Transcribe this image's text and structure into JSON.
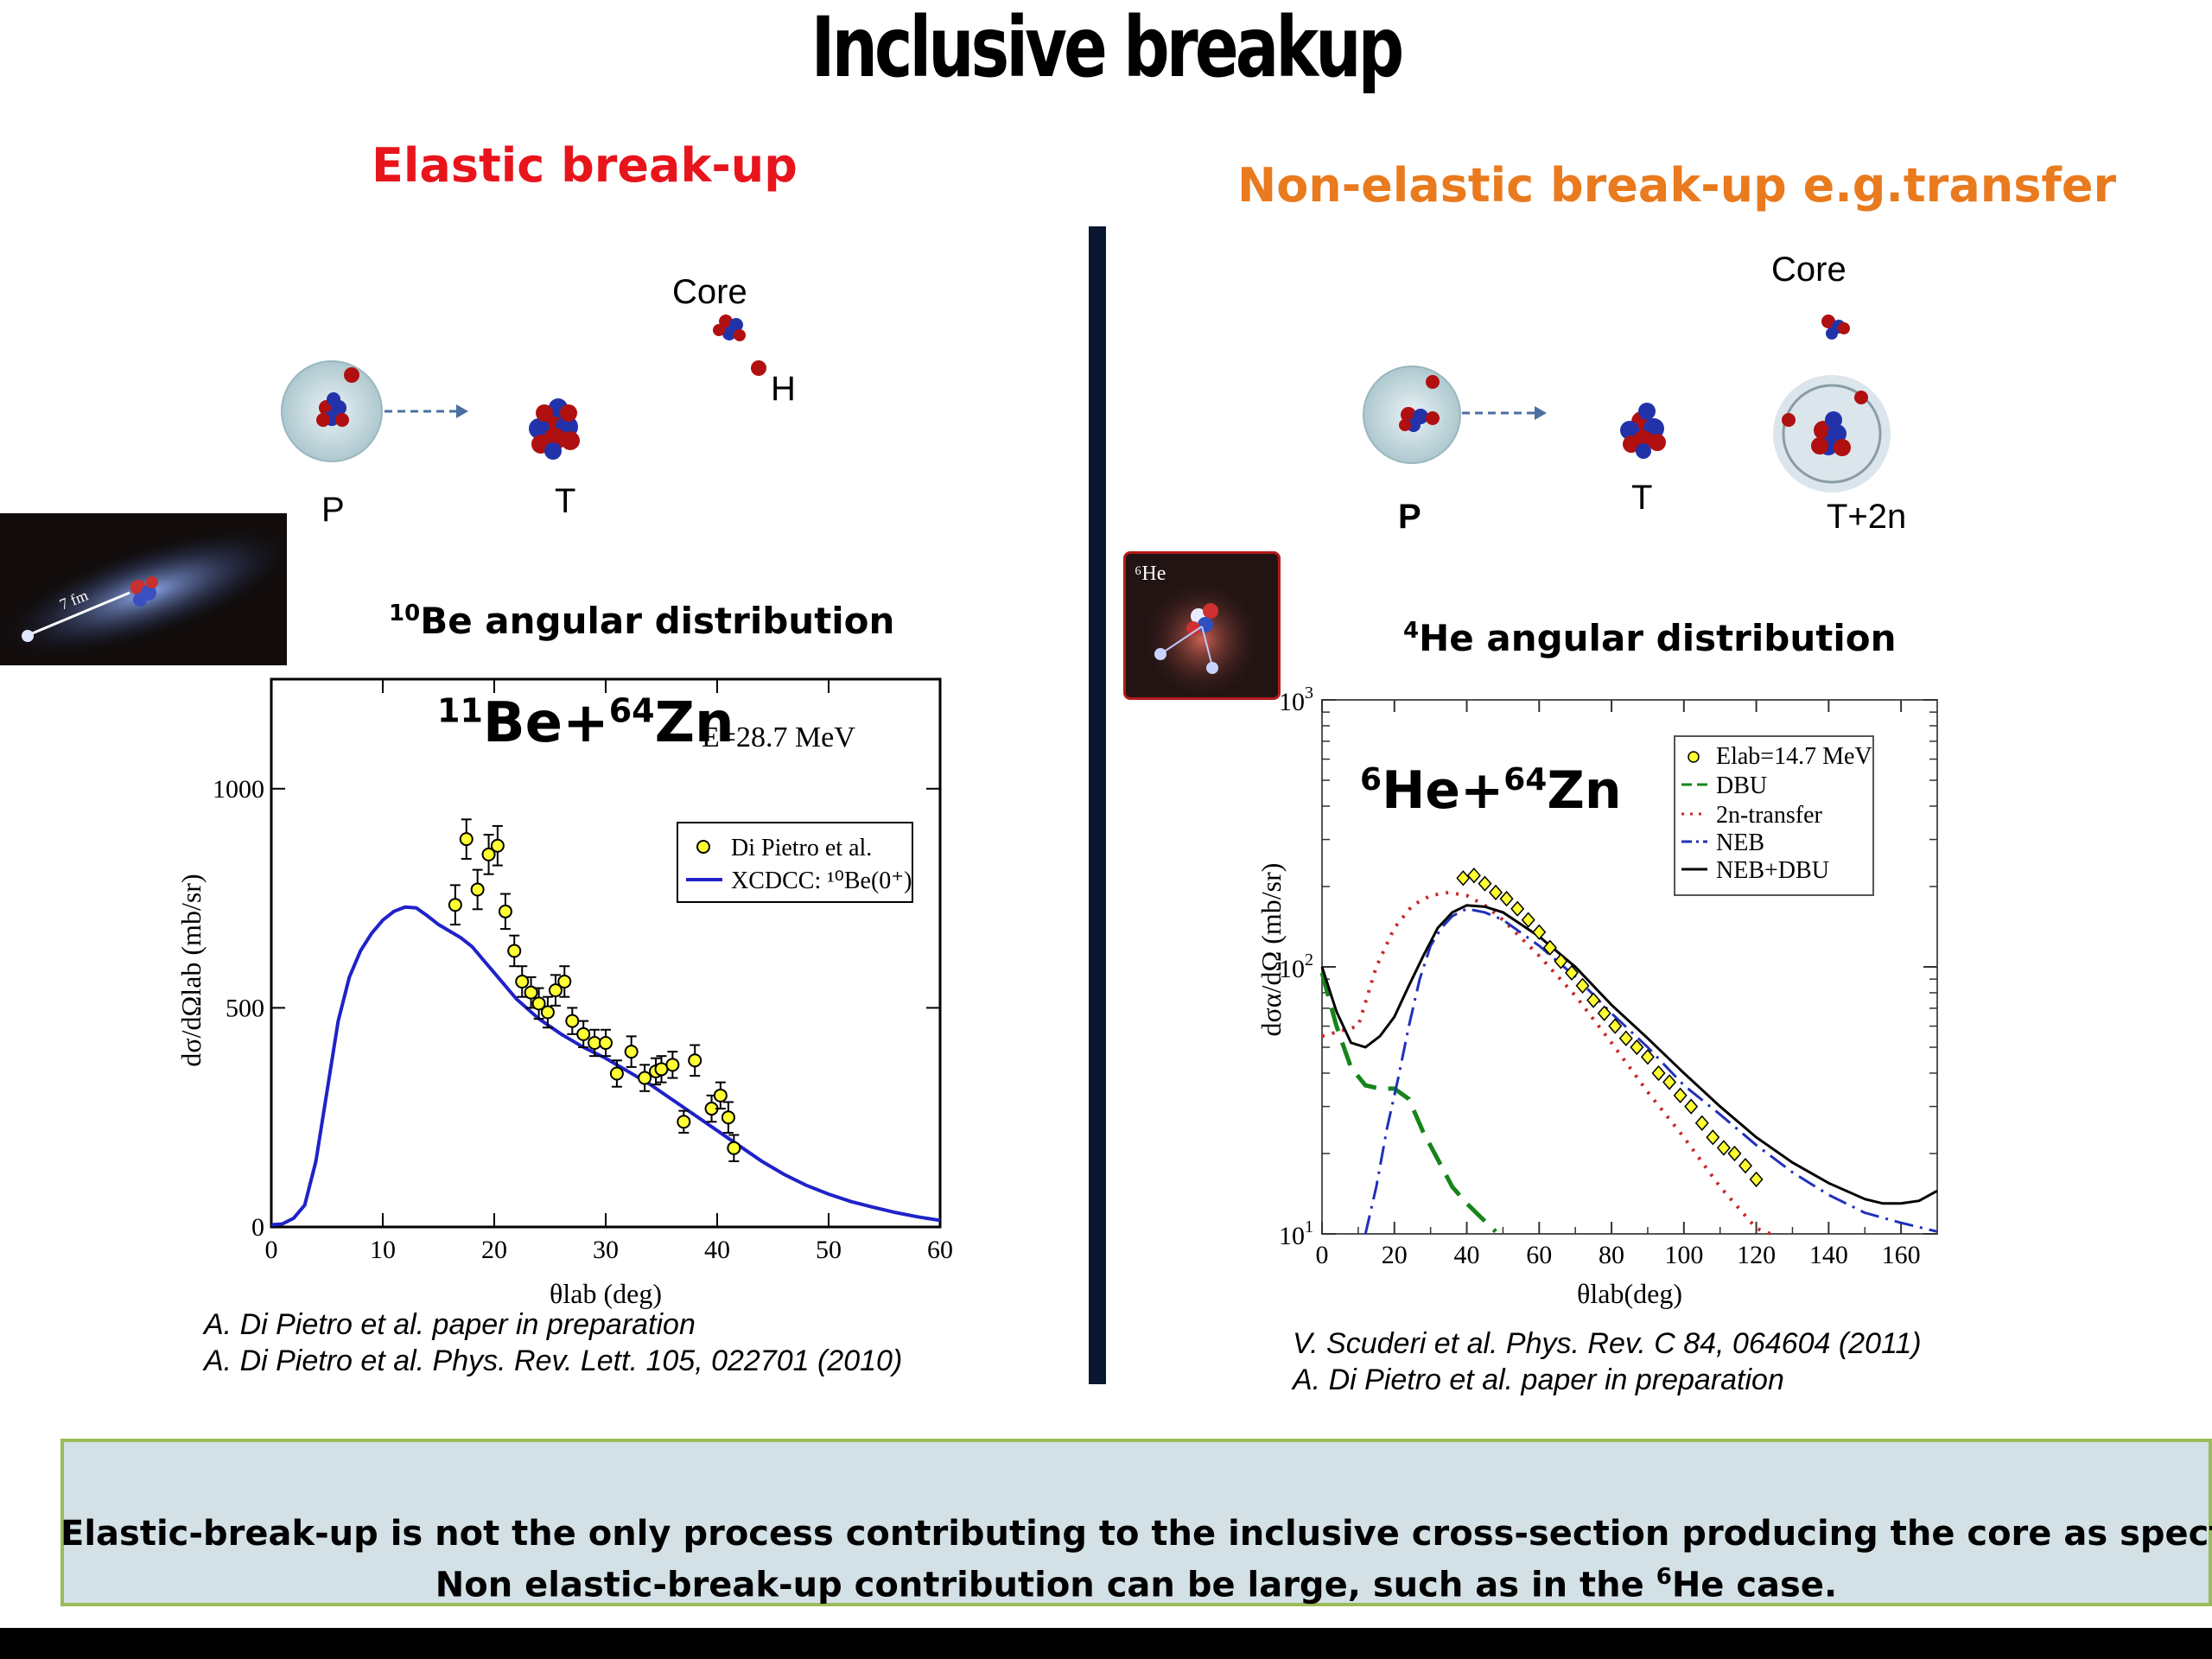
{
  "title": "Inclusive breakup",
  "left": {
    "heading": "Elastic break-up",
    "diagram": {
      "core_label": "Core",
      "fragment_label": "H",
      "projectile_label": "P",
      "target_label": "T"
    },
    "thumbnail_label": "7 fm",
    "dist_title_sup": "10",
    "dist_title_text": "Be angular distribution",
    "reaction": {
      "a_sup": "11",
      "a": "Be+",
      "b_sup": "64",
      "b": "Zn"
    },
    "citations": [
      "A. Di Pietro et al. paper in preparation",
      "A. Di Pietro et al. Phys. Rev. Lett. 105, 022701 (2010)"
    ]
  },
  "right": {
    "heading": "Non-elastic break-up e.g.transfer",
    "diagram": {
      "core_label": "Core",
      "projectile_label": "P",
      "target_label": "T",
      "product_label": "T+2n"
    },
    "thumbnail_label": "⁶He",
    "dist_title_sup": "4",
    "dist_title_text": "He angular distribution",
    "reaction": {
      "a_sup": "6",
      "a": "He+",
      "b_sup": "64",
      "b": "Zn"
    },
    "citations": [
      "V. Scuderi et al. Phys. Rev. C  84, 064604 (2011)",
      "A.   Di Pietro et al. paper in preparation"
    ]
  },
  "conclusion": {
    "line1": "Elastic-break-up is not the only process contributing to the inclusive cross-section producing the core as spectator.",
    "line2_pre": "Non elastic-break-up contribution can be large, such as in the ",
    "line2_sup": "6",
    "line2_post": "He case."
  },
  "chart_data": [
    {
      "type": "scatter",
      "energy_label": "E=28.7 MeV",
      "xlabel": "θlab (deg)",
      "ylabel": "dσ/dΩlab (mb/sr)",
      "xlim": [
        0,
        60
      ],
      "ylim": [
        0,
        1250
      ],
      "xticks": [
        0,
        10,
        20,
        30,
        40,
        50,
        60
      ],
      "yticks": [
        0,
        500,
        1000
      ],
      "legend_position": "top-right",
      "series": [
        {
          "name": "Di Pietro et al.",
          "kind": "points",
          "color": "#ffff33",
          "x": [
            16.5,
            17.5,
            18.5,
            19.5,
            20.3,
            21.0,
            21.8,
            22.5,
            23.3,
            24.0,
            24.8,
            25.5,
            26.3,
            27.0,
            28.0,
            29.0,
            30.0,
            31.0,
            32.3,
            33.5,
            34.5,
            35.0,
            36.0,
            37.0,
            38.0,
            39.5,
            40.3,
            41.0,
            41.5
          ],
          "y": [
            735,
            885,
            770,
            850,
            870,
            720,
            630,
            560,
            535,
            510,
            490,
            540,
            560,
            470,
            440,
            420,
            420,
            350,
            400,
            340,
            355,
            360,
            370,
            240,
            380,
            270,
            300,
            250,
            180
          ],
          "err": [
            45,
            45,
            45,
            45,
            45,
            40,
            35,
            35,
            35,
            35,
            35,
            35,
            35,
            30,
            30,
            30,
            30,
            30,
            35,
            30,
            30,
            30,
            30,
            25,
            35,
            30,
            30,
            35,
            30
          ]
        },
        {
          "name": "XCDCC: ¹⁰Be(0⁺)",
          "kind": "line",
          "color": "#1f22c8",
          "x": [
            0,
            1,
            2,
            3,
            4,
            5,
            6,
            7,
            8,
            9,
            10,
            11,
            12,
            13,
            14,
            15,
            16,
            17,
            18,
            19,
            20,
            22,
            24,
            26,
            28,
            30,
            32,
            34,
            36,
            38,
            40,
            42,
            44,
            46,
            48,
            50,
            52,
            54,
            56,
            58,
            60
          ],
          "y": [
            5,
            7,
            20,
            50,
            150,
            310,
            470,
            570,
            630,
            670,
            700,
            720,
            730,
            728,
            710,
            690,
            675,
            660,
            640,
            610,
            580,
            520,
            475,
            440,
            410,
            385,
            355,
            325,
            290,
            255,
            220,
            185,
            150,
            120,
            95,
            75,
            58,
            45,
            33,
            23,
            15
          ]
        }
      ]
    },
    {
      "type": "line",
      "xlabel": "θlab(deg)",
      "ylabel": "dσα/dΩ (mb/sr)",
      "xlim": [
        0,
        170
      ],
      "ylim": [
        10,
        1000
      ],
      "yscale": "log",
      "xticks": [
        0,
        20,
        40,
        60,
        80,
        100,
        120,
        140,
        160
      ],
      "yticks": [
        10,
        100,
        1000
      ],
      "legend_position": "top-right",
      "series": [
        {
          "name": "Elab=14.7 MeV",
          "kind": "points",
          "color": "#ffff33",
          "x": [
            39,
            42,
            45,
            48,
            51,
            54,
            57,
            60,
            63,
            66,
            69,
            72,
            75,
            78,
            81,
            84,
            87,
            90,
            93,
            96,
            99,
            102,
            105,
            108,
            111,
            114,
            117,
            120
          ],
          "y": [
            215,
            220,
            205,
            190,
            180,
            165,
            150,
            135,
            118,
            105,
            95,
            85,
            75,
            67,
            60,
            54,
            50,
            46,
            40,
            37,
            33,
            30,
            26,
            23,
            21,
            20,
            18,
            16
          ]
        },
        {
          "name": "DBU",
          "kind": "line",
          "dash": "28,14",
          "color": "#15851a",
          "x": [
            0,
            4,
            8,
            12,
            16,
            20,
            24,
            28,
            32,
            36,
            40,
            44,
            48
          ],
          "y": [
            95,
            60,
            42,
            36,
            35,
            35,
            32,
            24,
            19,
            15,
            13,
            11.5,
            10.2
          ]
        },
        {
          "name": "2n-transfer",
          "kind": "line",
          "dash": "3,9",
          "color": "#c8282a",
          "x": [
            0,
            10,
            15,
            20,
            25,
            30,
            35,
            40,
            45,
            50,
            60,
            70,
            80,
            90,
            100,
            110,
            120,
            124
          ],
          "y": [
            55,
            60,
            100,
            140,
            170,
            185,
            190,
            185,
            170,
            150,
            110,
            78,
            52,
            34,
            23,
            15,
            10.5,
            10
          ]
        },
        {
          "name": "NEB",
          "kind": "line",
          "dash": "22,8,3,8",
          "color": "#2030b8",
          "x": [
            12,
            15,
            18,
            21,
            24,
            27,
            30,
            33,
            36,
            40,
            45,
            50,
            60,
            70,
            80,
            90,
            100,
            110,
            120,
            130,
            140,
            150,
            160,
            170
          ],
          "y": [
            10,
            15,
            25,
            38,
            60,
            90,
            120,
            140,
            155,
            165,
            160,
            150,
            120,
            92,
            67,
            50,
            36,
            28,
            21.5,
            17,
            14,
            12,
            11,
            10.2
          ]
        },
        {
          "name": "NEB+DBU",
          "kind": "line",
          "color": "#000000",
          "x": [
            0,
            4,
            8,
            12,
            16,
            20,
            24,
            28,
            32,
            36,
            40,
            45,
            50,
            60,
            70,
            80,
            90,
            100,
            110,
            120,
            130,
            140,
            150,
            155,
            160,
            165,
            170
          ],
          "y": [
            100,
            68,
            52,
            50,
            55,
            65,
            85,
            110,
            140,
            160,
            170,
            168,
            160,
            130,
            100,
            72,
            54,
            40,
            30,
            23,
            18.5,
            15.5,
            13.5,
            13,
            13,
            13.3,
            14.5
          ]
        }
      ]
    }
  ]
}
